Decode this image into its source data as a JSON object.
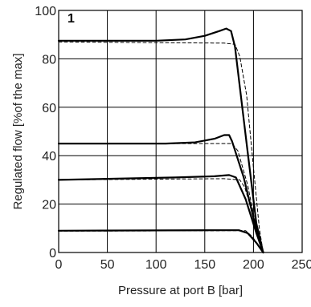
{
  "chart_data": {
    "type": "line",
    "panel_label": "1",
    "xlabel": "Pressure at port B [bar]",
    "ylabel": "Regulated flow [%of the max]",
    "xlim": [
      0,
      250
    ],
    "ylim": [
      0,
      100
    ],
    "x_ticks": [
      "0",
      "50",
      "100",
      "150",
      "200",
      "250"
    ],
    "y_ticks": [
      "0",
      "20",
      "40",
      "60",
      "80",
      "100"
    ],
    "grid": true,
    "series": [
      {
        "style": "solid",
        "points": [
          [
            0,
            87.5
          ],
          [
            100,
            87.5
          ],
          [
            130,
            88
          ],
          [
            150,
            89.5
          ],
          [
            165,
            91.5
          ],
          [
            172,
            92.5
          ],
          [
            177,
            91.5
          ],
          [
            181,
            85
          ],
          [
            193,
            45
          ],
          [
            203,
            12
          ],
          [
            210,
            0
          ]
        ]
      },
      {
        "style": "dashed",
        "points": [
          [
            0,
            87
          ],
          [
            170,
            86.5
          ],
          [
            181,
            86
          ],
          [
            186,
            81
          ],
          [
            193,
            65
          ],
          [
            200,
            35
          ],
          [
            206,
            10
          ],
          [
            210,
            0
          ]
        ]
      },
      {
        "style": "solid",
        "points": [
          [
            0,
            45
          ],
          [
            110,
            45
          ],
          [
            140,
            45.5
          ],
          [
            160,
            47
          ],
          [
            170,
            48.5
          ],
          [
            175,
            48.5
          ],
          [
            178,
            46
          ],
          [
            190,
            31
          ],
          [
            202,
            11
          ],
          [
            210,
            0
          ]
        ]
      },
      {
        "style": "dashed",
        "points": [
          [
            0,
            45
          ],
          [
            150,
            45
          ],
          [
            178,
            45
          ],
          [
            184,
            42
          ],
          [
            194,
            28
          ],
          [
            203,
            10
          ],
          [
            210,
            0
          ]
        ]
      },
      {
        "style": "solid",
        "points": [
          [
            0,
            30
          ],
          [
            120,
            31
          ],
          [
            160,
            31.5
          ],
          [
            175,
            32
          ],
          [
            182,
            31
          ],
          [
            192,
            22
          ],
          [
            203,
            8
          ],
          [
            210,
            0
          ]
        ]
      },
      {
        "style": "dashed",
        "points": [
          [
            0,
            30
          ],
          [
            170,
            30.5
          ],
          [
            186,
            30
          ],
          [
            191,
            27
          ],
          [
            200,
            15
          ],
          [
            210,
            0
          ]
        ]
      },
      {
        "style": "solid",
        "points": [
          [
            0,
            9
          ],
          [
            160,
            9.2
          ],
          [
            185,
            9.2
          ],
          [
            194,
            8
          ],
          [
            203,
            4
          ],
          [
            210,
            0
          ]
        ]
      },
      {
        "style": "dashed",
        "points": [
          [
            0,
            8.8
          ],
          [
            170,
            9
          ],
          [
            192,
            9
          ],
          [
            199,
            6.5
          ],
          [
            205,
            3
          ],
          [
            210,
            0
          ]
        ]
      }
    ]
  }
}
